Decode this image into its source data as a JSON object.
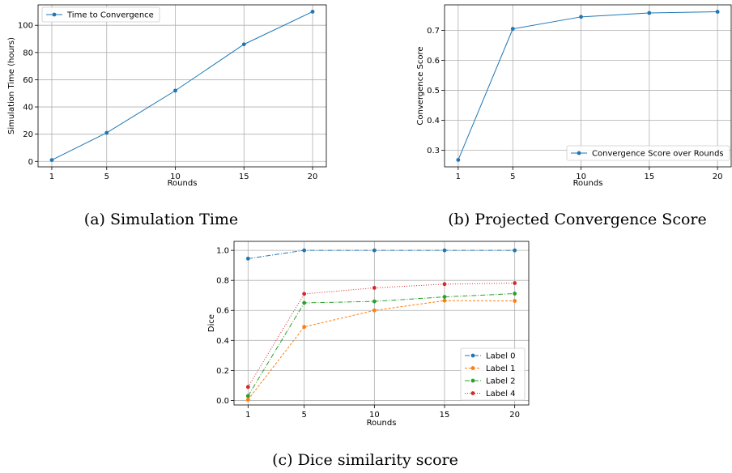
{
  "colors": {
    "blue": "#1f77b4",
    "orange": "#ff7f0e",
    "green": "#2ca02c",
    "red": "#d62728",
    "grid": "#b0b0b0"
  },
  "captions": {
    "a": "(a) Simulation Time",
    "b": "(b) Projected Convergence Score",
    "c": "(c) Dice similarity score"
  },
  "chart_data": [
    {
      "type": "line",
      "x": [
        1,
        5,
        10,
        15,
        20
      ],
      "xlabel": "Rounds",
      "ylabel": "Simulation Time (hours)",
      "xticks": [
        1,
        5,
        10,
        15,
        20
      ],
      "yticks": [
        0,
        20,
        40,
        60,
        80,
        100
      ],
      "xlim": [
        0,
        21
      ],
      "ylim": [
        -4,
        115
      ],
      "grid": true,
      "legend": "top-left",
      "series": [
        {
          "name": "Time to Convergence",
          "values": [
            1,
            21,
            52,
            86,
            110
          ],
          "color": "#1f77b4",
          "dash": ""
        }
      ]
    },
    {
      "type": "line",
      "x": [
        1,
        5,
        10,
        15,
        20
      ],
      "xlabel": "Rounds",
      "ylabel": "Convergence Score",
      "xticks": [
        1,
        5,
        10,
        15,
        20
      ],
      "yticks": [
        0.3,
        0.4,
        0.5,
        0.6,
        0.7
      ],
      "xlim": [
        0,
        21
      ],
      "ylim": [
        0.245,
        0.785
      ],
      "grid": true,
      "legend": "bottom-right",
      "series": [
        {
          "name": "Convergence Score over Rounds",
          "values": [
            0.268,
            0.705,
            0.745,
            0.758,
            0.762
          ],
          "color": "#1f77b4",
          "dash": ""
        }
      ]
    },
    {
      "type": "line",
      "x": [
        1,
        5,
        10,
        15,
        20
      ],
      "xlabel": "Rounds",
      "ylabel": "Dice",
      "xticks": [
        1,
        5,
        10,
        15,
        20
      ],
      "yticks": [
        0.0,
        0.2,
        0.4,
        0.6,
        0.8,
        1.0
      ],
      "xlim": [
        0,
        21
      ],
      "ylim": [
        -0.03,
        1.06
      ],
      "grid": true,
      "legend": "bottom-right",
      "series": [
        {
          "name": "Label 0",
          "values": [
            0.945,
            1.0,
            1.0,
            1.0,
            1.0
          ],
          "color": "#1f77b4",
          "dash": "6,2,1,2"
        },
        {
          "name": "Label 1",
          "values": [
            0.005,
            0.49,
            0.6,
            0.665,
            0.663
          ],
          "color": "#ff7f0e",
          "dash": "3,2"
        },
        {
          "name": "Label 2",
          "values": [
            0.03,
            0.65,
            0.66,
            0.69,
            0.712
          ],
          "color": "#2ca02c",
          "dash": "6,2,1,2"
        },
        {
          "name": "Label 4",
          "values": [
            0.09,
            0.71,
            0.75,
            0.775,
            0.782
          ],
          "color": "#d62728",
          "dash": "1,2"
        }
      ]
    }
  ]
}
